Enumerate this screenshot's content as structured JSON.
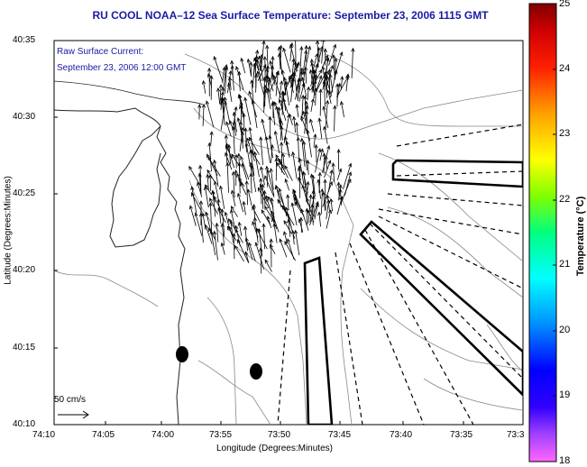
{
  "title": "RU COOL  NOAA–12  Sea Surface Temperature:  September 23, 2006 1115 GMT",
  "overlay": {
    "line1": "Raw Surface Current:",
    "line2": "September 23, 2006 12:00 GMT"
  },
  "axes": {
    "xlabel": "Longitude (Degrees:Minutes)",
    "ylabel": "Latitude (Degrees:Minutes)",
    "x_ticks": [
      "74:10",
      "74:05",
      "74:00",
      "73:55",
      "73:50",
      "73:45",
      "73:40",
      "73:35",
      "73:3"
    ],
    "y_ticks": [
      "40:35",
      "40:30",
      "40:25",
      "40:20",
      "40:15",
      "40:10"
    ]
  },
  "scale_arrow": {
    "label": "50 cm/s"
  },
  "colorbar": {
    "title": "Temperature (°C)",
    "ticks": [
      "25",
      "24",
      "23",
      "22",
      "21",
      "20",
      "19",
      "18"
    ],
    "min": 18,
    "max": 25,
    "colors": [
      "#ff66ff",
      "#6f00ff",
      "#0000ff",
      "#0088ff",
      "#00ffff",
      "#00ff80",
      "#80ff00",
      "#ffff00",
      "#ffa000",
      "#ff3000",
      "#d00000",
      "#800000"
    ]
  },
  "map": {
    "lon_range": [
      "74:10",
      "73:30"
    ],
    "lat_range": [
      "40:10",
      "40:35"
    ]
  }
}
